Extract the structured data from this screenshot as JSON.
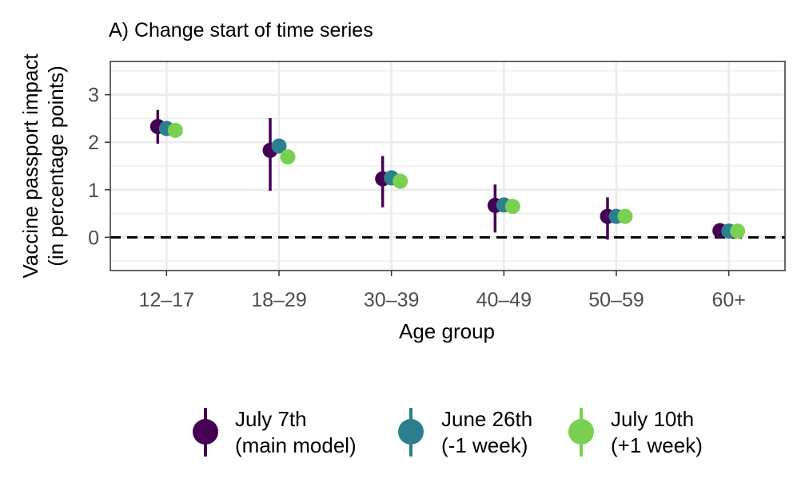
{
  "chart_data": {
    "type": "scatter",
    "title": "A) Change start of time series",
    "xlabel": "Age group",
    "ylabel_lines": [
      "Vaccine passport impact",
      "(in percentage points)"
    ],
    "categories": [
      "12–17",
      "18–29",
      "30–39",
      "40–49",
      "50–59",
      "60+"
    ],
    "ylim": [
      -0.7,
      3.7
    ],
    "yticks": [
      0,
      1,
      2,
      3
    ],
    "reference_line": 0,
    "grid": true,
    "legend_position": "bottom",
    "series": [
      {
        "name_lines": [
          "July 7th",
          "(main model)"
        ],
        "color": "#440154",
        "values": [
          2.33,
          1.83,
          1.23,
          0.67,
          0.44,
          0.14
        ],
        "ci_low": [
          1.97,
          0.98,
          0.63,
          0.1,
          -0.05,
          0.05
        ],
        "ci_high": [
          2.68,
          2.51,
          1.71,
          1.11,
          0.84,
          0.2
        ]
      },
      {
        "name_lines": [
          "June 26th",
          "(-1 week)"
        ],
        "color": "#2c7f8e",
        "values": [
          2.29,
          1.92,
          1.25,
          0.68,
          0.44,
          0.13
        ],
        "ci_low": null,
        "ci_high": null
      },
      {
        "name_lines": [
          "July 10th",
          "(+1 week)"
        ],
        "color": "#7ad151",
        "values": [
          2.25,
          1.69,
          1.18,
          0.65,
          0.44,
          0.13
        ],
        "ci_low": null,
        "ci_high": null
      }
    ]
  }
}
